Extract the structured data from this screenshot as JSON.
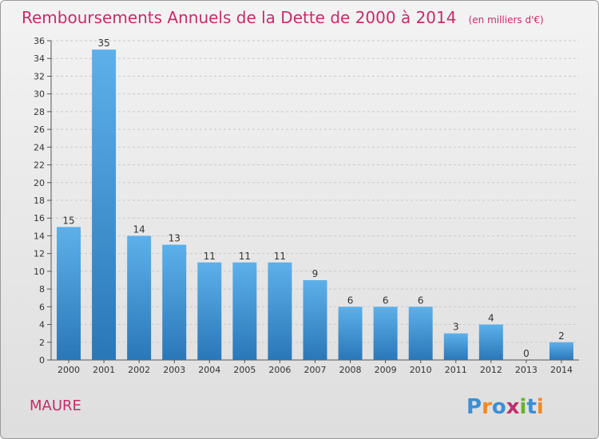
{
  "chart_data": {
    "type": "bar",
    "title": "Remboursements Annuels de la Dette de 2000 à 2014",
    "unit": "(en milliers d'€)",
    "categories": [
      "2000",
      "2001",
      "2002",
      "2003",
      "2004",
      "2005",
      "2006",
      "2007",
      "2008",
      "2009",
      "2010",
      "2011",
      "2012",
      "2013",
      "2014"
    ],
    "values": [
      15,
      35,
      14,
      13,
      11,
      11,
      11,
      9,
      6,
      6,
      6,
      3,
      4,
      0,
      2
    ],
    "ylim": [
      0,
      36
    ],
    "yticks": [
      0,
      2,
      4,
      6,
      8,
      10,
      12,
      14,
      16,
      18,
      20,
      22,
      24,
      26,
      28,
      30,
      32,
      34,
      36
    ],
    "grid": true,
    "data_labels": true,
    "bar_color": "#3b95d9"
  },
  "commune": "MAURE",
  "logo": {
    "text": "Proxiti",
    "letters": [
      "P",
      "r",
      "o",
      "x",
      "i",
      "t",
      "i"
    ],
    "colors": [
      "#3b8fd6",
      "#f08a24",
      "#3b8fd6",
      "#c42d6a",
      "#67b32e",
      "#3b8fd6",
      "#f08a24"
    ]
  },
  "colors": {
    "title": "#c42d6a",
    "bar": "#3b95d9",
    "bar_dark": "#2a77b8"
  }
}
